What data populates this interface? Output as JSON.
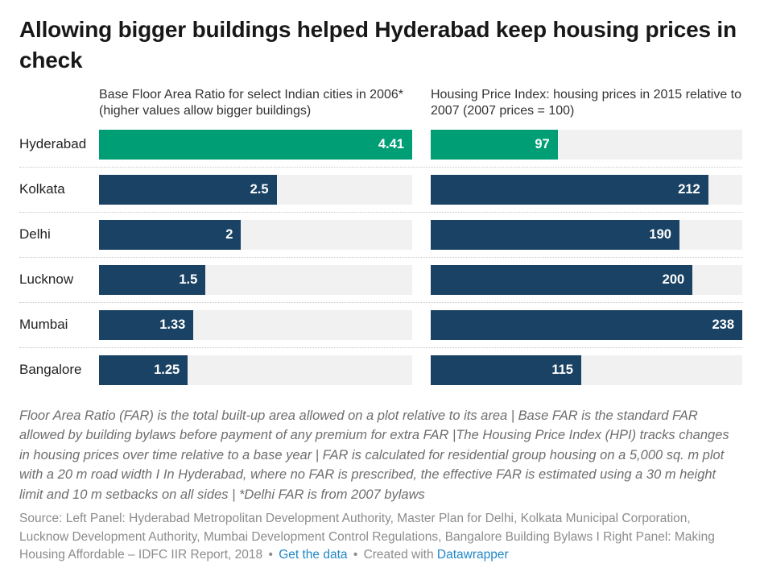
{
  "title": "Allowing bigger buildings helped Hyderabad keep housing prices in check",
  "panels": {
    "left_header": "Base Floor Area Ratio for select Indian cities in 2006* (higher values allow bigger buildings)",
    "right_header": "Housing Price Index: housing prices in 2015 relative to 2007 (2007 prices = 100)"
  },
  "chart_data": {
    "type": "bar",
    "orientation": "horizontal",
    "categories": [
      "Hyderabad",
      "Kolkata",
      "Delhi",
      "Lucknow",
      "Mumbai",
      "Bangalore"
    ],
    "series": [
      {
        "name": "Base Floor Area Ratio for select Indian cities in 2006",
        "values": [
          4.41,
          2.5,
          2,
          1.5,
          1.33,
          1.25
        ],
        "labels": [
          "4.41",
          "2.5",
          "2",
          "1.5",
          "1.33",
          "1.25"
        ],
        "xlim": [
          0,
          4.41
        ]
      },
      {
        "name": "Housing Price Index: housing prices in 2015 relative to 2007 (2007 prices = 100)",
        "values": [
          97,
          212,
          190,
          200,
          238,
          115
        ],
        "labels": [
          "97",
          "212",
          "190",
          "200",
          "238",
          "115"
        ],
        "xlim": [
          0,
          238
        ]
      }
    ],
    "highlight_category": "Hyderabad",
    "value_label_position": "inside-end",
    "legend": "none",
    "grid": "off"
  },
  "colors": {
    "highlight_bar": "#009E75",
    "bar": "#1A4264",
    "track": "#F1F1F1",
    "separator": "#C9C9C9",
    "link": "#1F87C7",
    "title_text": "#181818",
    "notes_text": "#6E6E6E",
    "source_text": "#8C8C8C"
  },
  "notes": "Floor Area Ratio (FAR) is the total built-up area allowed on a plot relative to its area | Base FAR is the standard FAR allowed by building bylaws before payment of any premium for extra FAR |The Housing Price Index (HPI) tracks changes in housing prices over time relative to a base year | FAR is calculated for residential group housing on a 5,000 sq. m plot with a 20 m road width I In Hyderabad, where no FAR is prescribed, the effective FAR is estimated using a 30 m height limit and 10 m setbacks on all sides | *Delhi FAR is from 2007 bylaws",
  "source": {
    "text": "Source: Left Panel: Hyderabad Metropolitan Development Authority, Master Plan for Delhi, Kolkata Municipal Corporation, Lucknow Development Authority, Mumbai Development Control Regulations, Bangalore Building Bylaws I Right Panel: Making Housing Affordable – IDFC IIR Report, 2018",
    "bullet": "•",
    "get_data_label": "Get the data",
    "created_with_text": "Created with",
    "datawrapper_label": "Datawrapper"
  }
}
